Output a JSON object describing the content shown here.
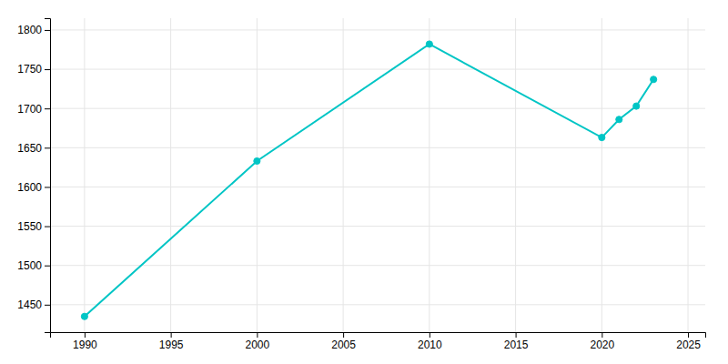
{
  "chart_data": {
    "type": "line",
    "x": [
      1990,
      2000,
      2010,
      2020,
      2021,
      2022,
      2023
    ],
    "values": [
      1435,
      1633,
      1782,
      1663,
      1686,
      1703,
      1737
    ],
    "color": "#00C5C5",
    "marker": "circle",
    "xlim": [
      1988,
      2026
    ],
    "ylim": [
      1415,
      1815
    ],
    "xticks": [
      1990,
      1995,
      2000,
      2005,
      2010,
      2015,
      2020,
      2025
    ],
    "yticks": [
      1450,
      1500,
      1550,
      1600,
      1650,
      1700,
      1750,
      1800
    ],
    "grid": true
  }
}
